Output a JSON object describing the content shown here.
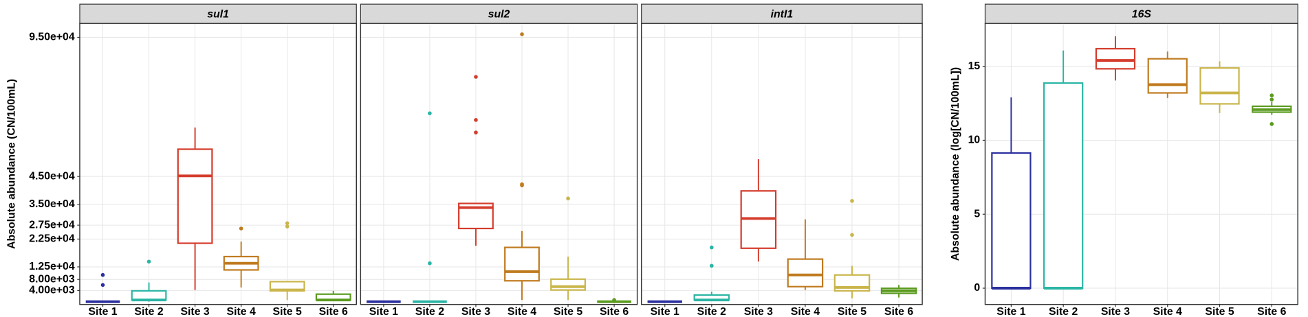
{
  "chart_data": [
    {
      "type": "box",
      "title": "sul1",
      "y_label": "Absolute abundance (CN/100mL)",
      "categories": [
        "Site 1",
        "Site 2",
        "Site 3",
        "Site 4",
        "Site 5",
        "Site 6"
      ],
      "ylim": [
        -1000,
        100000
      ],
      "yticks": [
        {
          "value": 4000,
          "label": "4.00e+03"
        },
        {
          "value": 8000,
          "label": "8.00e+03"
        },
        {
          "value": 12500,
          "label": "1.25e+04"
        },
        {
          "value": 22500,
          "label": "2.25e+04"
        },
        {
          "value": 27500,
          "label": "2.75e+04"
        },
        {
          "value": 35000,
          "label": "3.50e+04"
        },
        {
          "value": 45000,
          "label": "4.50e+04"
        },
        {
          "value": 95000,
          "label": "9.50e+04"
        }
      ],
      "grid": true,
      "boxes": [
        {
          "color": "#2b2f9e",
          "whislo": 0,
          "q1": 0,
          "med": 0,
          "q3": 0,
          "whishi": 0,
          "fliers": [
            9600,
            6000
          ]
        },
        {
          "color": "#2ab5a5",
          "whislo": 0,
          "q1": 600,
          "med": 600,
          "q3": 3900,
          "whishi": 6900,
          "fliers": [
            14400
          ]
        },
        {
          "color": "#d43c2c",
          "whislo": 4200,
          "q1": 21000,
          "med": 45200,
          "q3": 54800,
          "whishi": 62600,
          "fliers": []
        },
        {
          "color": "#c07a1e",
          "whislo": 5100,
          "q1": 11400,
          "med": 13800,
          "q3": 16200,
          "whishi": 21600,
          "fliers": [
            26300
          ]
        },
        {
          "color": "#c9b54a",
          "whislo": 600,
          "q1": 3900,
          "med": 4200,
          "q3": 7200,
          "whishi": 7200,
          "fliers": [
            28200,
            27000
          ]
        },
        {
          "color": "#5a9a1e",
          "whislo": 600,
          "q1": 600,
          "med": 600,
          "q3": 2700,
          "whishi": 3900,
          "fliers": []
        }
      ]
    },
    {
      "type": "box",
      "title": "sul2",
      "categories": [
        "Site 1",
        "Site 2",
        "Site 3",
        "Site 4",
        "Site 5",
        "Site 6"
      ],
      "ylim": [
        -1000,
        100000
      ],
      "boxes": [
        {
          "color": "#2b2f9e",
          "whislo": 0,
          "q1": 0,
          "med": 0,
          "q3": 0,
          "whishi": 0,
          "fliers": []
        },
        {
          "color": "#2ab5a5",
          "whislo": 0,
          "q1": 0,
          "med": 0,
          "q3": 0,
          "whishi": 0,
          "fliers": [
            13800,
            67700
          ]
        },
        {
          "color": "#d43c2c",
          "whislo": 20100,
          "q1": 26300,
          "med": 33800,
          "q3": 35300,
          "whishi": 35300,
          "fliers": [
            80800,
            65300,
            60800
          ]
        },
        {
          "color": "#c07a1e",
          "whislo": 600,
          "q1": 7500,
          "med": 10800,
          "q3": 19500,
          "whishi": 25400,
          "fliers": [
            96100,
            42200,
            41800
          ]
        },
        {
          "color": "#c9b54a",
          "whislo": 600,
          "q1": 4200,
          "med": 5400,
          "q3": 8100,
          "whishi": 16200,
          "fliers": [
            37100
          ]
        },
        {
          "color": "#5a9a1e",
          "whislo": 0,
          "q1": 0,
          "med": 0,
          "q3": 0,
          "whishi": 0,
          "fliers": [
            600
          ]
        }
      ]
    },
    {
      "type": "box",
      "title": "intI1",
      "categories": [
        "Site 1",
        "Site 2",
        "Site 3",
        "Site 4",
        "Site 5",
        "Site 6"
      ],
      "ylim": [
        -1000,
        100000
      ],
      "boxes": [
        {
          "color": "#2b2f9e",
          "whislo": 0,
          "q1": 0,
          "med": 0,
          "q3": 0,
          "whishi": 0,
          "fliers": []
        },
        {
          "color": "#2ab5a5",
          "whislo": 600,
          "q1": 600,
          "med": 600,
          "q3": 2400,
          "whishi": 3600,
          "fliers": [
            12900,
            19500
          ]
        },
        {
          "color": "#d43c2c",
          "whislo": 14400,
          "q1": 19200,
          "med": 29900,
          "q3": 39800,
          "whishi": 51200,
          "fliers": []
        },
        {
          "color": "#c07a1e",
          "whislo": 4200,
          "q1": 5400,
          "med": 9600,
          "q3": 15300,
          "whishi": 29600,
          "fliers": []
        },
        {
          "color": "#c9b54a",
          "whislo": 1200,
          "q1": 3900,
          "med": 5100,
          "q3": 9600,
          "whishi": 12900,
          "fliers": [
            36200,
            24000
          ]
        },
        {
          "color": "#5a9a1e",
          "whislo": 1500,
          "q1": 3000,
          "med": 3900,
          "q3": 4800,
          "whishi": 6000,
          "fliers": []
        }
      ]
    },
    {
      "type": "box",
      "title": "16S",
      "y_label": "Absolute abundance (log[CN/100mL])",
      "categories": [
        "Site 1",
        "Site 2",
        "Site 3",
        "Site 4",
        "Site 5",
        "Site 6"
      ],
      "ylim": [
        -1.1,
        17.9
      ],
      "yticks": [
        0,
        5,
        10,
        15
      ],
      "grid": true,
      "boxes": [
        {
          "color": "#2b2f9e",
          "whislo": 0,
          "q1": 0,
          "med": 0,
          "q3": 9.14,
          "whishi": 12.9,
          "fliers": []
        },
        {
          "color": "#2ab5a5",
          "whislo": 0,
          "q1": 0,
          "med": 0,
          "q3": 13.87,
          "whishi": 16.07,
          "fliers": []
        },
        {
          "color": "#d43c2c",
          "whislo": 14.04,
          "q1": 14.83,
          "med": 15.4,
          "q3": 16.19,
          "whishi": 17.03,
          "fliers": []
        },
        {
          "color": "#c07a1e",
          "whislo": 12.86,
          "q1": 13.2,
          "med": 13.76,
          "q3": 15.51,
          "whishi": 16.0,
          "fliers": []
        },
        {
          "color": "#c9b54a",
          "whislo": 11.84,
          "q1": 12.46,
          "med": 13.2,
          "q3": 14.89,
          "whishi": 15.34,
          "fliers": []
        },
        {
          "color": "#5a9a1e",
          "whislo": 11.73,
          "q1": 11.9,
          "med": 12.07,
          "q3": 12.3,
          "whishi": 12.58,
          "fliers": [
            13.03,
            12.75,
            11.1
          ]
        }
      ]
    }
  ]
}
